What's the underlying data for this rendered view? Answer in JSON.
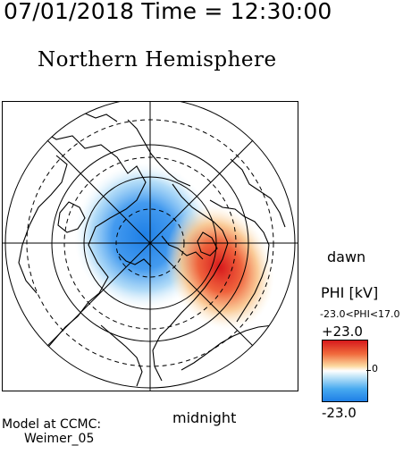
{
  "header": {
    "title": "07/01/2018 Time = 12:30:00"
  },
  "map": {
    "title": "Northern Hemisphere",
    "label_dawn": "dawn",
    "label_midnight": "midnight"
  },
  "colorbar": {
    "title": "PHI [kV]",
    "range_text": "-23.0<PHI<17.0",
    "max_label": "+23.0",
    "min_label": "-23.0",
    "zero_label": "0",
    "colors": {
      "positive": "#d7191c",
      "neutral": "#ffffff",
      "negative": "#1e7fe6"
    }
  },
  "credits": {
    "line1": "Model at CCMC:",
    "line2": "Weimer_05"
  }
}
